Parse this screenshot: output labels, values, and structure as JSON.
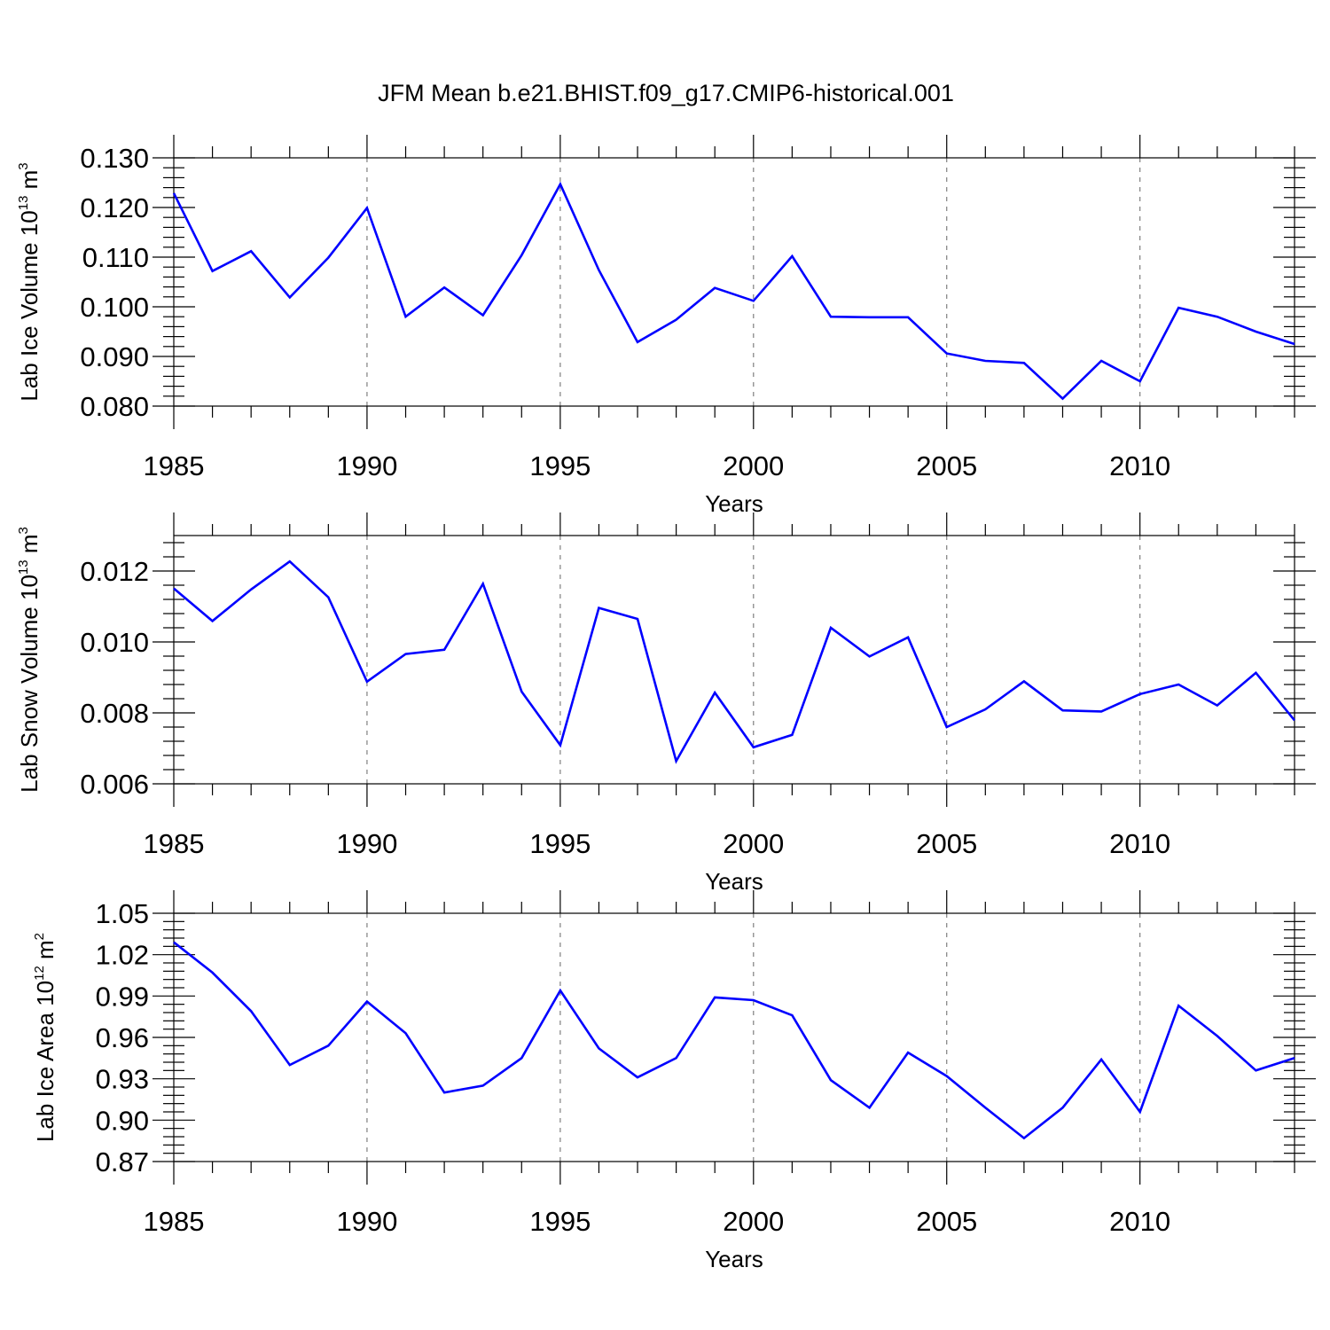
{
  "title": "JFM Mean b.e21.BHIST.f09_g17.CMIP6-historical.001",
  "colors": {
    "series": "#0000ff",
    "axis": "#000000",
    "grid": "#7f7f7f"
  },
  "chart_data": [
    {
      "type": "line",
      "ylabel": {
        "text": "Lab Ice Volume 10",
        "exp": "13",
        "unit": " m",
        "unit_exp": "3"
      },
      "xlabel": "Years",
      "xlim": [
        1985,
        2014
      ],
      "ylim": [
        0.08,
        0.13
      ],
      "xticks": [
        1985,
        1990,
        1995,
        2000,
        2005,
        2010
      ],
      "xtick_labels": [
        "1985",
        "1990",
        "1995",
        "2000",
        "2005",
        "2010"
      ],
      "yticks": [
        0.08,
        0.09,
        0.1,
        0.11,
        0.12,
        0.13
      ],
      "ytick_labels": [
        "0.080",
        "0.090",
        "0.100",
        "0.110",
        "0.120",
        "0.130"
      ],
      "grid": "vertical dashed at major x ticks",
      "x": [
        1985,
        1986,
        1987,
        1988,
        1989,
        1990,
        1991,
        1992,
        1993,
        1994,
        1995,
        1996,
        1997,
        1998,
        1999,
        2000,
        2001,
        2002,
        2003,
        2004,
        2005,
        2006,
        2007,
        2008,
        2009,
        2010,
        2011,
        2012,
        2013,
        2014
      ],
      "values": [
        0.1229,
        0.1072,
        0.1112,
        0.1019,
        0.1099,
        0.1199,
        0.098,
        0.1039,
        0.0983,
        0.1104,
        0.1247,
        0.1074,
        0.0929,
        0.0974,
        0.1038,
        0.1012,
        0.1102,
        0.098,
        0.0979,
        0.0979,
        0.0906,
        0.0891,
        0.0887,
        0.0815,
        0.0891,
        0.085,
        0.0998,
        0.098,
        0.095,
        0.0925
      ]
    },
    {
      "type": "line",
      "ylabel": {
        "text": "Lab Snow Volume 10",
        "exp": "13",
        "unit": " m",
        "unit_exp": "3"
      },
      "xlabel": "Years",
      "xlim": [
        1985,
        2014
      ],
      "ylim": [
        0.006,
        0.013
      ],
      "xticks": [
        1985,
        1990,
        1995,
        2000,
        2005,
        2010
      ],
      "xtick_labels": [
        "1985",
        "1990",
        "1995",
        "2000",
        "2005",
        "2010"
      ],
      "yticks": [
        0.006,
        0.008,
        0.01,
        0.012
      ],
      "ytick_labels": [
        "0.006",
        "0.008",
        "0.010",
        "0.012"
      ],
      "grid": "vertical dashed at major x ticks",
      "x": [
        1985,
        1986,
        1987,
        1988,
        1989,
        1990,
        1991,
        1992,
        1993,
        1994,
        1995,
        1996,
        1997,
        1998,
        1999,
        2000,
        2001,
        2002,
        2003,
        2004,
        2005,
        2006,
        2007,
        2008,
        2009,
        2010,
        2011,
        2012,
        2013,
        2014
      ],
      "values": [
        0.01151,
        0.01059,
        0.01148,
        0.01227,
        0.01126,
        0.00888,
        0.00966,
        0.00978,
        0.01164,
        0.0086,
        0.00709,
        0.01096,
        0.01065,
        0.00664,
        0.00857,
        0.00703,
        0.00738,
        0.0104,
        0.00959,
        0.01013,
        0.0076,
        0.0081,
        0.00889,
        0.00807,
        0.00804,
        0.00853,
        0.0088,
        0.00821,
        0.00913,
        0.00779
      ]
    },
    {
      "type": "line",
      "ylabel": {
        "text": "Lab Ice Area 10",
        "exp": "12",
        "unit": " m",
        "unit_exp": "2"
      },
      "xlabel": "Years",
      "xlim": [
        1985,
        2014
      ],
      "ylim": [
        0.87,
        1.05
      ],
      "xticks": [
        1985,
        1990,
        1995,
        2000,
        2005,
        2010
      ],
      "xtick_labels": [
        "1985",
        "1990",
        "1995",
        "2000",
        "2005",
        "2010"
      ],
      "yticks": [
        0.87,
        0.9,
        0.93,
        0.96,
        0.99,
        1.02,
        1.05
      ],
      "ytick_labels": [
        "0.87",
        "0.90",
        "0.93",
        "0.96",
        "0.99",
        "1.02",
        "1.05"
      ],
      "grid": "vertical dashed at major x ticks",
      "x": [
        1985,
        1986,
        1987,
        1988,
        1989,
        1990,
        1991,
        1992,
        1993,
        1994,
        1995,
        1996,
        1997,
        1998,
        1999,
        2000,
        2001,
        2002,
        2003,
        2004,
        2005,
        2006,
        2007,
        2008,
        2009,
        2010,
        2011,
        2012,
        2013,
        2014
      ],
      "values": [
        1.029,
        1.007,
        0.979,
        0.94,
        0.954,
        0.986,
        0.963,
        0.92,
        0.925,
        0.945,
        0.994,
        0.952,
        0.931,
        0.945,
        0.989,
        0.987,
        0.976,
        0.929,
        0.909,
        0.949,
        0.932,
        0.909,
        0.887,
        0.909,
        0.944,
        0.906,
        0.983,
        0.961,
        0.936,
        0.945
      ]
    }
  ]
}
